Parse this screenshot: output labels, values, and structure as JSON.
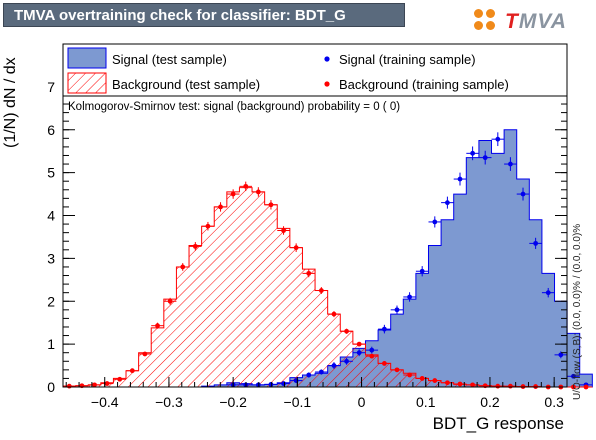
{
  "header": {
    "title": "TMVA overtraining check for classifier: BDT_G",
    "logo_text_pre": "T",
    "logo_text_post": "MVA"
  },
  "annotations": {
    "ks_test": "Kolmogorov-Smirnov test: signal (background) probability =     0 (    0)",
    "uo_flow": "U/O-flow (S,B): (0.0, 0.0)% / (0.0, 0.0)%"
  },
  "colors": {
    "signal_fill": "#7d99d1",
    "signal_line": "#0000ee",
    "background_line": "#ff0000",
    "title_bg": "#5a6a7d"
  },
  "chart_data": {
    "type": "bar",
    "xlabel": "BDT_G response",
    "ylabel": "(1/N) dN / dx",
    "xlim": [
      -0.465,
      0.32
    ],
    "ylim": [
      0,
      8
    ],
    "xticks": [
      -0.4,
      -0.3,
      -0.2,
      -0.1,
      0,
      0.1,
      0.2,
      0.3
    ],
    "xtick_labels": [
      "−0.4",
      "−0.3",
      "−0.2",
      "−0.1",
      "0",
      "0.1",
      "0.2",
      "0.3"
    ],
    "yticks": [
      0,
      1,
      2,
      3,
      4,
      5,
      6,
      7
    ],
    "bin_edges_start": -0.465,
    "bin_width": 0.01963,
    "legend": {
      "signal_test": "Signal (test sample)",
      "background_test": "Background (test sample)",
      "signal_train": "Signal (training sample)",
      "background_train": "Background (training sample)"
    },
    "series": [
      {
        "name": "Signal (test sample)",
        "style": "filled-histogram",
        "values": [
          0,
          0,
          0,
          0,
          0,
          0,
          0,
          0,
          0,
          0,
          0,
          0.02,
          0.05,
          0.1,
          0.08,
          0.05,
          0.06,
          0.1,
          0.22,
          0.28,
          0.32,
          0.5,
          0.7,
          0.9,
          1.08,
          1.33,
          1.7,
          2.05,
          2.65,
          3.3,
          3.9,
          4.5,
          5.35,
          5.75,
          5.45,
          6.0,
          4.85,
          3.9,
          2.65,
          2.0,
          1.25,
          0.3
        ]
      },
      {
        "name": "Background (test sample)",
        "style": "hatched-histogram",
        "values": [
          0.02,
          0.03,
          0.05,
          0.1,
          0.2,
          0.38,
          0.8,
          1.38,
          2.05,
          2.8,
          3.3,
          3.75,
          4.2,
          4.55,
          4.65,
          4.55,
          4.25,
          3.7,
          3.25,
          2.75,
          2.25,
          1.7,
          1.3,
          1.0,
          0.75,
          0.55,
          0.4,
          0.32,
          0.2,
          0.15,
          0.1,
          0.06,
          0.05,
          0.03,
          0.02,
          0.01,
          0.01,
          0,
          0,
          0,
          0,
          0
        ]
      },
      {
        "name": "Signal (training sample)",
        "style": "points",
        "values": [
          null,
          null,
          null,
          null,
          null,
          null,
          null,
          null,
          null,
          null,
          null,
          null,
          null,
          0.05,
          0.05,
          0.05,
          0.06,
          0.08,
          0.15,
          0.28,
          0.35,
          0.5,
          0.6,
          0.8,
          0.86,
          1.35,
          1.8,
          2.1,
          2.7,
          3.85,
          4.3,
          4.85,
          5.45,
          5.35,
          5.78,
          5.2,
          4.5,
          3.35,
          2.2,
          0.75,
          0.25,
          0.05
        ],
        "errors": [
          null,
          null,
          null,
          null,
          null,
          null,
          null,
          null,
          null,
          null,
          null,
          null,
          null,
          0.02,
          0.02,
          0.02,
          0.02,
          0.03,
          0.04,
          0.06,
          0.06,
          0.08,
          0.08,
          0.08,
          0.08,
          0.1,
          0.1,
          0.11,
          0.12,
          0.13,
          0.14,
          0.15,
          0.16,
          0.16,
          0.16,
          0.16,
          0.15,
          0.13,
          0.11,
          0.08,
          0.05,
          0.02
        ]
      },
      {
        "name": "Background (training sample)",
        "style": "points",
        "values": [
          0.02,
          0.03,
          0.05,
          0.08,
          0.18,
          0.38,
          0.77,
          1.43,
          2.0,
          2.8,
          3.28,
          3.75,
          4.2,
          4.5,
          4.68,
          4.55,
          4.25,
          3.65,
          3.25,
          2.65,
          2.25,
          1.7,
          1.3,
          1.0,
          0.72,
          0.55,
          0.4,
          0.28,
          0.2,
          0.15,
          0.1,
          0.07,
          0.05,
          0.03,
          0.02,
          0.02,
          0.01,
          0.01,
          0,
          0,
          0,
          0
        ],
        "errors": [
          0.01,
          0.01,
          0.02,
          0.02,
          0.03,
          0.04,
          0.05,
          0.07,
          0.08,
          0.09,
          0.1,
          0.1,
          0.11,
          0.11,
          0.11,
          0.11,
          0.11,
          0.1,
          0.1,
          0.09,
          0.08,
          0.07,
          0.06,
          0.05,
          0.05,
          0.04,
          0.04,
          0.03,
          0.03,
          0.02,
          0.02,
          0.02,
          0.01,
          0.01,
          0.01,
          0.01,
          0.01,
          0.01,
          0,
          0,
          0,
          0
        ]
      }
    ]
  }
}
